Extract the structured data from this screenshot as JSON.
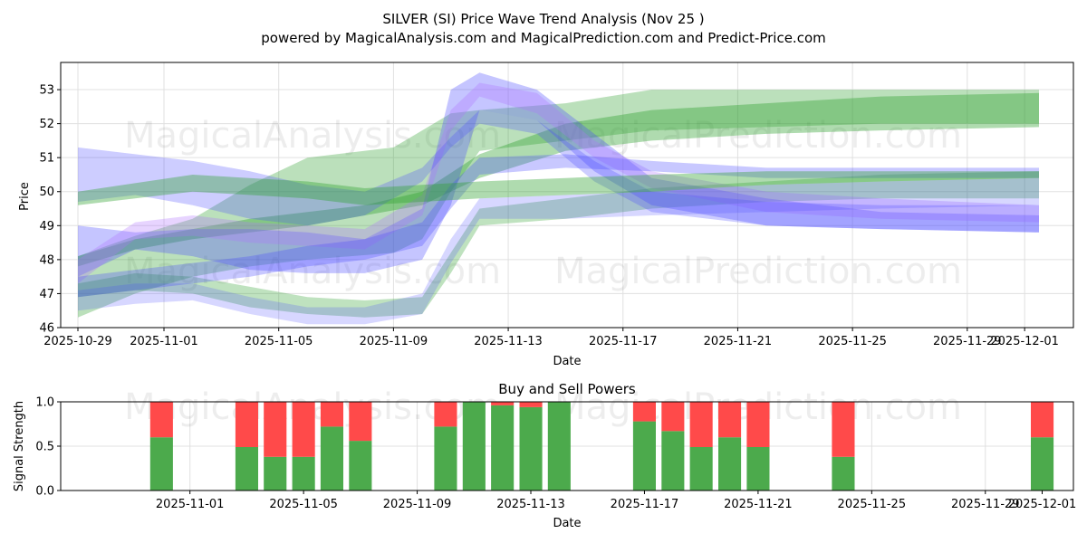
{
  "title": "SILVER (SI) Price Wave Trend Analysis (Nov 25 )",
  "subtitle": "powered by MagicalAnalysis.com and MagicalPrediction.com and Predict-Price.com",
  "watermarks": [
    "MagicalAnalysis.com",
    "MagicalPrediction.com",
    "MagicalAnalysis.com",
    "MagicalPrediction.com",
    "MagicalAnalysis.com",
    "MagicalPrediction.com"
  ],
  "colors": {
    "green": "#2ca02c",
    "blue": "#4a4aff",
    "violet": "#b070ff",
    "buy": "#4caa4c",
    "sell": "#ff4a4a",
    "grid": "#e0e0e0"
  },
  "chart_data": [
    {
      "type": "area",
      "name": "price-wave",
      "xlabel": "Date",
      "ylabel": "Price",
      "ylim": [
        46.0,
        53.8
      ],
      "xlim": [
        "2025-10-28.4",
        "2025-12-02.7"
      ],
      "yticks": [
        46,
        47,
        48,
        49,
        50,
        51,
        52,
        53
      ],
      "xticks": [
        "2025-10-29",
        "2025-11-01",
        "2025-11-05",
        "2025-11-09",
        "2025-11-13",
        "2025-11-17",
        "2025-11-21",
        "2025-11-25",
        "2025-11-29",
        "2025-12-01"
      ],
      "grid": true,
      "bands": [
        {
          "color": "green",
          "opacity": 0.38,
          "x": [
            0,
            2,
            4,
            6,
            8,
            10,
            12,
            14,
            17,
            20,
            24,
            28,
            33.5
          ],
          "low": [
            47.8,
            48.3,
            48.6,
            48.8,
            49.0,
            49.3,
            49.6,
            50.4,
            51.2,
            51.5,
            51.7,
            51.8,
            51.9
          ],
          "high": [
            48.1,
            48.6,
            48.9,
            49.2,
            49.4,
            49.6,
            50.0,
            51.1,
            52.0,
            52.4,
            52.6,
            52.8,
            52.9
          ]
        },
        {
          "color": "green",
          "opacity": 0.32,
          "x": [
            0,
            2,
            4,
            6,
            8,
            11,
            12,
            13,
            14,
            17,
            20,
            24,
            28,
            33.5
          ],
          "low": [
            46.3,
            47.0,
            47.5,
            47.8,
            48.0,
            48.2,
            48.6,
            50.0,
            51.2,
            51.5,
            51.8,
            51.9,
            52.0,
            52.0
          ],
          "high": [
            48.1,
            48.7,
            49.2,
            50.2,
            51.0,
            51.3,
            51.8,
            52.3,
            52.4,
            52.6,
            53.0,
            53.0,
            53.0,
            53.0
          ]
        },
        {
          "color": "green",
          "opacity": 0.3,
          "x": [
            0,
            2,
            4,
            6,
            8,
            10,
            12,
            13,
            14,
            17,
            20,
            24,
            28,
            33.5
          ],
          "low": [
            46.9,
            47.1,
            47.0,
            46.6,
            46.4,
            46.3,
            46.4,
            47.6,
            49.0,
            49.2,
            49.5,
            49.7,
            49.8,
            49.8
          ],
          "high": [
            47.3,
            47.6,
            47.5,
            47.2,
            46.9,
            46.8,
            46.9,
            48.2,
            49.5,
            49.8,
            50.1,
            50.3,
            50.5,
            50.6
          ]
        },
        {
          "color": "blue",
          "opacity": 0.32,
          "x": [
            0,
            2,
            4,
            6,
            8,
            10,
            12,
            13,
            14,
            16,
            18,
            20,
            24,
            28,
            33.5
          ],
          "low": [
            47.5,
            48.3,
            48.1,
            47.7,
            47.6,
            47.6,
            48.0,
            49.6,
            52.4,
            52.1,
            50.6,
            49.6,
            49.0,
            48.9,
            48.8
          ],
          "high": [
            49.0,
            48.8,
            48.9,
            48.9,
            48.8,
            48.6,
            49.5,
            53.0,
            53.5,
            53.0,
            51.7,
            50.4,
            49.8,
            49.4,
            49.3
          ]
        },
        {
          "color": "violet",
          "opacity": 0.3,
          "x": [
            0,
            2,
            4,
            6,
            8,
            10,
            12,
            13,
            14,
            16,
            18,
            20,
            24,
            28,
            33.5
          ],
          "low": [
            47.3,
            48.6,
            48.7,
            48.5,
            48.4,
            48.3,
            49.3,
            51.8,
            52.8,
            52.3,
            51.0,
            50.1,
            49.4,
            49.2,
            49.1
          ],
          "high": [
            48.0,
            49.1,
            49.3,
            49.1,
            49.0,
            48.9,
            49.9,
            52.4,
            53.2,
            52.9,
            51.5,
            50.6,
            50.0,
            49.8,
            49.6
          ]
        },
        {
          "color": "blue",
          "opacity": 0.28,
          "x": [
            0,
            2,
            4,
            6,
            8,
            10,
            12,
            13,
            14,
            16,
            18,
            20,
            24,
            28,
            33.5
          ],
          "low": [
            49.7,
            49.9,
            49.6,
            49.2,
            49.0,
            49.3,
            50.3,
            51.3,
            52.0,
            51.7,
            50.3,
            49.4,
            49.0,
            48.9,
            48.8
          ],
          "high": [
            51.3,
            51.1,
            50.9,
            50.6,
            50.2,
            50.0,
            50.7,
            51.6,
            52.4,
            52.1,
            50.9,
            50.0,
            49.7,
            49.6,
            49.6
          ]
        },
        {
          "color": "blue",
          "opacity": 0.22,
          "x": [
            0,
            2,
            4,
            6,
            8,
            10,
            12,
            13,
            14,
            17,
            20,
            24,
            28,
            33.5
          ],
          "low": [
            46.5,
            46.7,
            46.8,
            46.4,
            46.1,
            46.1,
            46.4,
            47.9,
            49.2,
            49.2,
            49.3,
            49.4,
            49.5,
            49.6
          ],
          "high": [
            47.1,
            47.3,
            47.3,
            46.9,
            46.6,
            46.6,
            47.0,
            48.6,
            49.8,
            49.9,
            50.0,
            50.2,
            50.3,
            50.4
          ]
        },
        {
          "color": "blue",
          "opacity": 0.3,
          "x": [
            0,
            2,
            4,
            6,
            8,
            10,
            12,
            13,
            14,
            17,
            20,
            24,
            28,
            33.5
          ],
          "low": [
            46.9,
            47.1,
            47.3,
            47.5,
            47.8,
            48.0,
            48.4,
            49.5,
            50.5,
            50.7,
            50.6,
            50.4,
            50.4,
            50.4
          ],
          "high": [
            47.5,
            47.7,
            47.9,
            48.1,
            48.4,
            48.6,
            49.1,
            50.2,
            51.0,
            51.1,
            50.9,
            50.7,
            50.7,
            50.7
          ]
        },
        {
          "color": "green",
          "opacity": 0.38,
          "x": [
            0,
            4,
            8,
            10,
            12,
            14,
            17,
            20,
            24,
            28,
            33.5
          ],
          "low": [
            49.6,
            50.0,
            49.8,
            49.6,
            49.7,
            49.8,
            49.9,
            50.0,
            50.2,
            50.3,
            50.4
          ],
          "high": [
            50.0,
            50.5,
            50.3,
            50.1,
            50.2,
            50.3,
            50.4,
            50.5,
            50.6,
            50.6,
            50.6
          ]
        }
      ]
    },
    {
      "type": "bar",
      "name": "buy-sell-powers",
      "title": "Buy and Sell Powers",
      "xlabel": "Date",
      "ylabel": "Signal Strength",
      "ylim": [
        0.0,
        1.0
      ],
      "yticks": [
        "0.0",
        "0.5",
        "1.0"
      ],
      "xticks": [
        "2025-11-01",
        "2025-11-05",
        "2025-11-09",
        "2025-11-13",
        "2025-11-17",
        "2025-11-21",
        "2025-11-25",
        "2025-11-29",
        "2025-12-01"
      ],
      "grid": true,
      "days": [
        2,
        5,
        6,
        7,
        8,
        9,
        12,
        13,
        14,
        15,
        16,
        19,
        20,
        21,
        22,
        23,
        26,
        33
      ],
      "buy": [
        0.6,
        0.49,
        0.38,
        0.38,
        0.72,
        0.56,
        0.72,
        1.0,
        0.96,
        0.94,
        1.0,
        0.78,
        0.67,
        0.49,
        0.6,
        0.49,
        0.38,
        0.6
      ],
      "sell": [
        0.4,
        0.51,
        0.62,
        0.62,
        0.28,
        0.44,
        0.28,
        0.0,
        0.04,
        0.06,
        0.0,
        0.22,
        0.33,
        0.51,
        0.4,
        0.51,
        0.62,
        0.4
      ]
    }
  ]
}
